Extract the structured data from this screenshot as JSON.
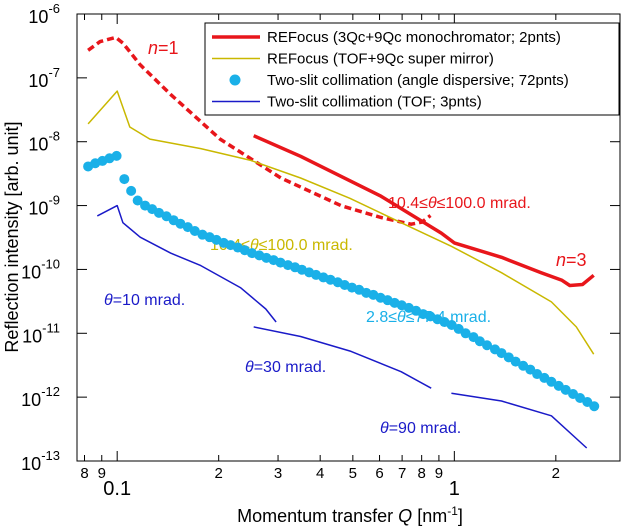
{
  "chart_data": {
    "type": "line",
    "xscale": "log",
    "yscale": "log",
    "ylabel": "Reflection intensity [arb. unit]",
    "xlabel": {
      "text": "Momentum transfer ",
      "symbol": "Q",
      "unit": " [nm",
      "sup": "-1",
      "close": "]"
    },
    "xlim": [
      0.076,
      3.1
    ],
    "ylim": [
      1e-13,
      1e-06
    ],
    "xticks": [
      {
        "value": 0.08,
        "label": "8"
      },
      {
        "value": 0.09,
        "label": "9"
      },
      0.1,
      {
        "value": 0.2,
        "label": "2"
      },
      {
        "value": 0.3,
        "label": "3"
      },
      {
        "value": 0.4,
        "label": "4"
      },
      {
        "value": 0.5,
        "label": "5"
      },
      {
        "value": 0.6,
        "label": "6"
      },
      {
        "value": 0.7,
        "label": "7"
      },
      {
        "value": 0.8,
        "label": "8"
      },
      {
        "value": 0.9,
        "label": "9"
      },
      1,
      {
        "value": 2,
        "label": "2"
      }
    ],
    "yticks": [
      {
        "value": 1e-06,
        "label": "10",
        "sup": "-6"
      },
      {
        "value": 1e-07,
        "label": "10",
        "sup": "-7"
      },
      {
        "value": 1e-08,
        "label": "10",
        "sup": "-8"
      },
      {
        "value": 1e-09,
        "label": "10",
        "sup": "-9"
      },
      {
        "value": 1e-10,
        "label": "10",
        "sup": "-10"
      },
      {
        "value": 1e-11,
        "label": "10",
        "sup": "-11"
      },
      {
        "value": 1e-12,
        "label": "10",
        "sup": "-12"
      },
      {
        "value": 1e-13,
        "label": "10",
        "sup": "-13"
      }
    ],
    "legend": "upper right",
    "series": [
      {
        "name": "REFocus (3Qc+9Qc monochromator; 2pnts)",
        "color": "#e8161b",
        "width": 3.5,
        "pieces": [
          {
            "dashed": true,
            "x": [
              0.082,
              0.089,
              0.099,
              0.104,
              0.117,
              0.144,
              0.202,
              0.306,
              0.461,
              0.606,
              0.745,
              0.8,
              0.85
            ],
            "values": [
              2.7e-07,
              3.7e-07,
              4.3e-07,
              3.5e-07,
              1.6e-07,
              5.5e-08,
              1.1e-08,
              2.7e-09,
              1e-09,
              6.5e-10,
              5.1e-10,
              5.5e-10,
              7e-10
            ]
          },
          {
            "dashed": false,
            "x": [
              0.254,
              0.35,
              0.606,
              0.915,
              1.0,
              1.38,
              1.81,
              2.08,
              2.2,
              2.4,
              2.59
            ],
            "values": [
              1.24e-08,
              5.9e-09,
              1.4e-09,
              3.7e-10,
              2.6e-10,
              1.55e-10,
              8.9e-11,
              6.8e-11,
              5.6e-11,
              5.8e-11,
              8.1e-11
            ]
          }
        ]
      },
      {
        "name": "REFocus (TOF+9Qc super mirror)",
        "color": "#c9b800",
        "width": 1.5,
        "x": [
          0.082,
          0.1,
          0.109,
          0.125,
          0.177,
          0.249,
          0.35,
          0.49,
          0.695,
          0.98,
          1.38,
          1.94,
          2.3,
          2.59
        ],
        "values": [
          1.9e-08,
          6.2e-08,
          1.7e-08,
          1.1e-08,
          7.8e-09,
          5.1e-09,
          2.7e-09,
          1.3e-09,
          5.4e-10,
          2.3e-10,
          8.9e-11,
          3.1e-11,
          1.26e-11,
          4.7e-12
        ]
      },
      {
        "name": "Two-slit collimation (angle dispersive; 72pnts)",
        "color": "#1ab0e8",
        "marker": "circle",
        "x": [
          0.082,
          0.0861,
          0.0904,
          0.0949,
          0.0996,
          0.105,
          0.11,
          0.115,
          0.121,
          0.127,
          0.133,
          0.14,
          0.147,
          0.154,
          0.162,
          0.17,
          0.179,
          0.188,
          0.197,
          0.207,
          0.217,
          0.228,
          0.239,
          0.251,
          0.264,
          0.277,
          0.291,
          0.305,
          0.321,
          0.337,
          0.353,
          0.371,
          0.389,
          0.409,
          0.429,
          0.451,
          0.473,
          0.497,
          0.522,
          0.548,
          0.575,
          0.604,
          0.634,
          0.665,
          0.698,
          0.733,
          0.77,
          0.808,
          0.849,
          0.891,
          0.935,
          0.982,
          1.03,
          1.08,
          1.14,
          1.19,
          1.25,
          1.32,
          1.38,
          1.45,
          1.52,
          1.6,
          1.68,
          1.76,
          1.85,
          1.94,
          2.04,
          2.14,
          2.25,
          2.36,
          2.48,
          2.6
        ],
        "values": [
          4.1e-09,
          4.6e-09,
          5e-09,
          5.5e-09,
          6e-09,
          2.6e-09,
          1.7e-09,
          1.2e-09,
          1e-09,
          8.8e-10,
          7.7e-10,
          6.8e-10,
          5.9e-10,
          5.2e-10,
          4.6e-10,
          4e-10,
          3.5e-10,
          3.2e-10,
          2.9e-10,
          2.6e-10,
          2.4e-10,
          2.2e-10,
          2e-10,
          1.8e-10,
          1.66e-10,
          1.52e-10,
          1.4e-10,
          1.28e-10,
          1.17e-10,
          1.08e-10,
          9.9e-11,
          9e-11,
          8.2e-11,
          7.5e-11,
          6.9e-11,
          6.3e-11,
          5.7e-11,
          5.2e-11,
          4.8e-11,
          4.3e-11,
          4e-11,
          3.6e-11,
          3.3e-11,
          3e-11,
          2.75e-11,
          2.5e-11,
          2.25e-11,
          2e-11,
          1.84e-11,
          1.66e-11,
          1.5e-11,
          1.35e-11,
          1.17e-11,
          1e-11,
          8.7e-12,
          7.5e-12,
          6.5e-12,
          5.6e-12,
          4.9e-12,
          4.2e-12,
          3.6e-12,
          3.1e-12,
          2.7e-12,
          2.3e-12,
          2e-12,
          1.74e-12,
          1.5e-12,
          1.3e-12,
          1.12e-12,
          9.7e-13,
          8.4e-13,
          7.2e-13
        ]
      },
      {
        "name": "Two-slit collimation (TOF; 3pnts)",
        "color": "#1a1ac8",
        "width": 1.5,
        "x": [
          0.0873,
          0.1,
          0.104,
          0.117,
          0.144,
          0.177,
          0.232,
          0.276,
          0.296,
          null,
          0.254,
          0.35,
          0.494,
          0.695,
          0.854,
          null,
          0.98,
          1.38,
          1.94,
          2.47
        ],
        "values": [
          6.9e-10,
          1e-09,
          5.4e-10,
          3.2e-10,
          1.8e-10,
          1.15e-10,
          5.2e-11,
          2.4e-11,
          1.5e-11,
          null,
          1.26e-11,
          8.9e-12,
          5.2e-12,
          2.5e-12,
          1.38e-12,
          null,
          1.15e-12,
          8.7e-13,
          5.1e-13,
          1.6e-13
        ]
      }
    ],
    "annotations": [
      "n=1",
      "n=3",
      "10.4≤θ≤100.0 mrad.",
      "10.4≤θ≤100.0 mrad.",
      "2.8≤θ≤77.4 mrad.",
      "θ=10 mrad.",
      "θ=30 mrad.",
      "θ=90 mrad."
    ]
  }
}
